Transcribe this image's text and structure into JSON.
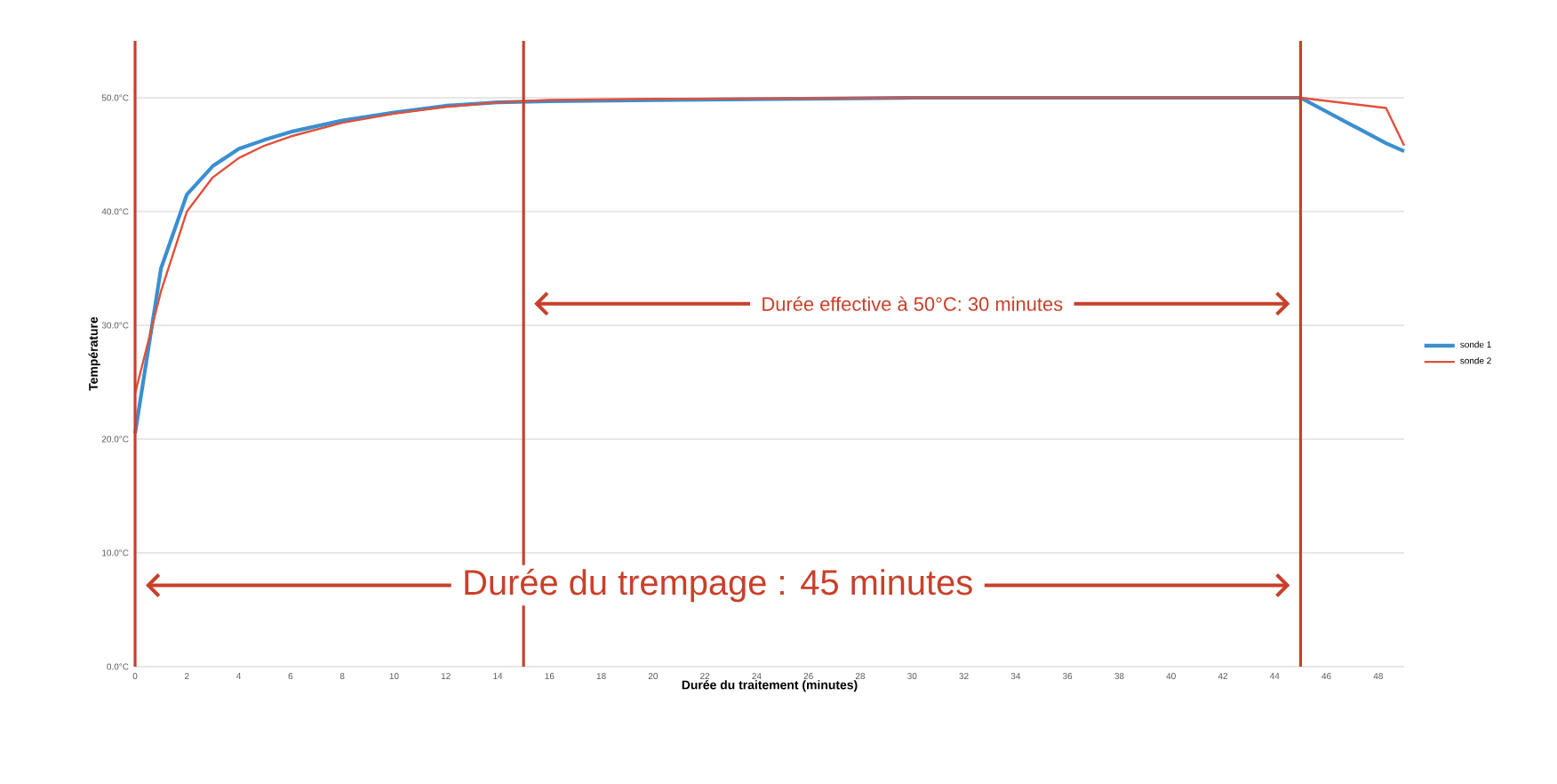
{
  "chart_data": {
    "type": "line",
    "xlabel": "Durée du traitement (minutes)",
    "ylabel": "Température",
    "xlim": [
      0,
      49
    ],
    "ylim": [
      0,
      55
    ],
    "xticks": [
      0,
      2,
      4,
      6,
      8,
      10,
      12,
      14,
      16,
      18,
      20,
      22,
      24,
      26,
      28,
      30,
      32,
      34,
      36,
      38,
      40,
      42,
      44,
      46,
      48
    ],
    "yticks": [
      {
        "value": 0,
        "label": "0.0°C"
      },
      {
        "value": 10,
        "label": "10.0°C"
      },
      {
        "value": 20,
        "label": "20.0°C"
      },
      {
        "value": 30,
        "label": "30.0°C"
      },
      {
        "value": 40,
        "label": "40.0°C"
      },
      {
        "value": 50,
        "label": "50.0°C"
      }
    ],
    "grid": "y",
    "legend": "right",
    "marker": "none",
    "x": [
      0,
      1,
      2,
      3,
      4,
      5,
      6,
      8,
      10,
      12,
      14,
      16,
      20,
      30,
      45,
      48.3,
      49
    ],
    "series": [
      {
        "name": "sonde 1",
        "color": "#3a8fd0",
        "values": [
          20.5,
          35,
          41.5,
          44,
          45.5,
          46.3,
          47,
          48,
          48.7,
          49.3,
          49.6,
          49.7,
          49.8,
          50,
          50,
          46,
          45.3
        ]
      },
      {
        "name": "sonde 2",
        "color": "#e0503a",
        "values": [
          24,
          33,
          40,
          43,
          44.7,
          45.8,
          46.6,
          47.8,
          48.6,
          49.2,
          49.6,
          49.8,
          49.9,
          50,
          50,
          49.1,
          45.8
        ]
      }
    ],
    "ref_lines": [
      {
        "axis": "x",
        "value": 0,
        "color": "#c8402a"
      },
      {
        "axis": "x",
        "value": 15,
        "color": "#c8402a"
      },
      {
        "axis": "x",
        "value": 45,
        "color": "#c8402a"
      }
    ],
    "annotations": [
      "Durée effective  à 50°C: 30 minutes",
      "Durée du trempage :  45 minutes"
    ]
  }
}
